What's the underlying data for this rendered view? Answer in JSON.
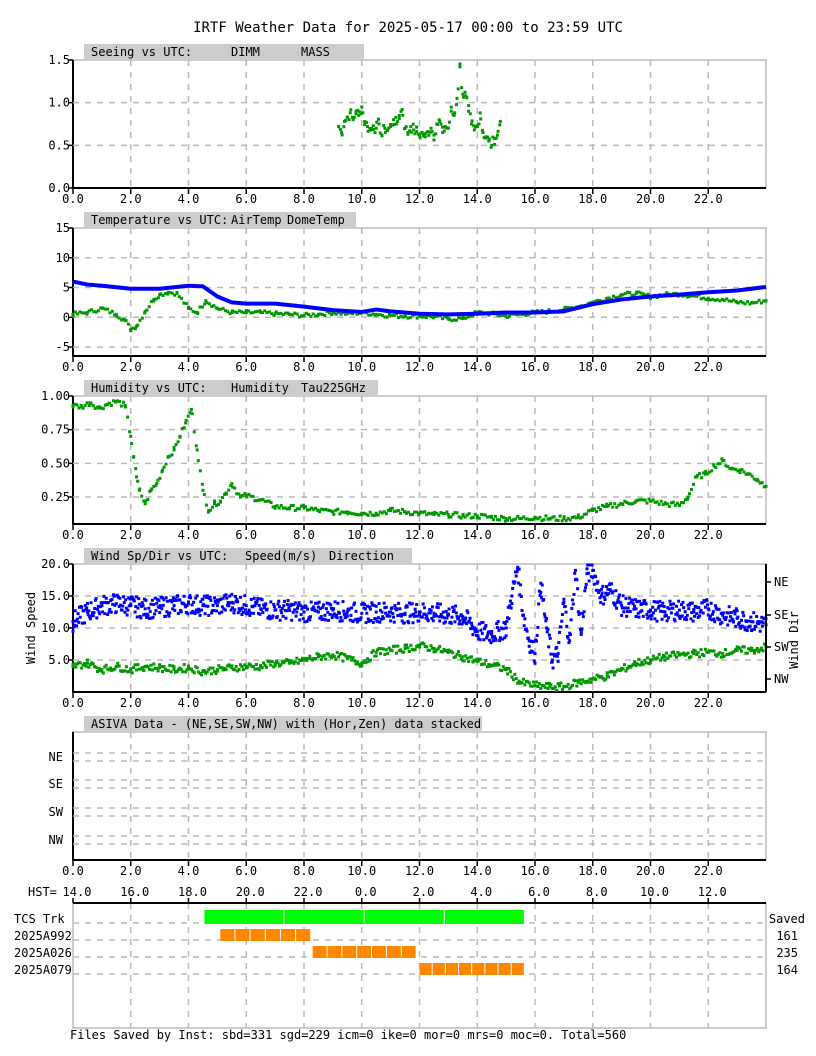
{
  "title": "IRTF Weather Data for 2025-05-17 00:00 to 23:59 UTC",
  "colors": {
    "green": "#009900",
    "blue": "#0000ff",
    "lime": "#00ff00",
    "orange": "#ff8800",
    "grid": "#bbbbbb",
    "header_bg": "#cccccc"
  },
  "x_ticks": [
    "0.0",
    "2.0",
    "4.0",
    "6.0",
    "8.0",
    "10.0",
    "12.0",
    "14.0",
    "16.0",
    "18.0",
    "20.0",
    "22.0"
  ],
  "hst_prefix": "HST=",
  "hst_ticks": [
    "14.0",
    "16.0",
    "18.0",
    "20.0",
    "22.0",
    "0.0",
    "2.0",
    "4.0",
    "6.0",
    "8.0",
    "10.0",
    "12.0"
  ],
  "chart_data": [
    {
      "type": "scatter",
      "panel": "seeing",
      "header": "Seeing vs UTC:",
      "legend": [
        {
          "label": "DIMM",
          "color": "#009900"
        },
        {
          "label": "MASS",
          "color": "#0000ff"
        }
      ],
      "ylim": [
        0,
        1.5
      ],
      "xlim": [
        0,
        24
      ],
      "y_ticks": [
        "1.5",
        "1.0",
        "0.5",
        "0.0"
      ],
      "y_tick_values": [
        1.5,
        1.0,
        0.5,
        0.0
      ],
      "series": [
        {
          "name": "DIMM",
          "color": "#009900",
          "x": [
            9.2,
            9.3,
            9.4,
            9.5,
            9.6,
            9.7,
            9.8,
            9.9,
            10.0,
            10.1,
            10.2,
            10.3,
            10.4,
            10.5,
            10.6,
            10.7,
            10.8,
            10.9,
            11.0,
            11.1,
            11.2,
            11.3,
            11.4,
            11.5,
            11.6,
            11.7,
            11.8,
            11.9,
            12.0,
            12.1,
            12.2,
            12.3,
            12.4,
            12.5,
            12.6,
            12.7,
            12.8,
            12.9,
            13.0,
            13.1,
            13.2,
            13.3,
            13.4,
            13.5,
            13.6,
            13.7,
            13.8,
            13.9,
            14.0,
            14.1,
            14.2,
            14.3,
            14.4,
            14.5,
            14.6,
            14.7,
            14.8
          ],
          "y": [
            0.72,
            0.65,
            0.78,
            0.83,
            0.88,
            0.8,
            0.9,
            0.85,
            0.95,
            0.78,
            0.72,
            0.68,
            0.73,
            0.7,
            0.75,
            0.62,
            0.7,
            0.68,
            0.72,
            0.8,
            0.75,
            0.85,
            0.92,
            0.7,
            0.65,
            0.72,
            0.68,
            0.66,
            0.62,
            0.64,
            0.6,
            0.66,
            0.7,
            0.62,
            0.75,
            0.78,
            0.65,
            0.72,
            0.7,
            0.9,
            0.85,
            1.05,
            1.42,
            1.1,
            1.08,
            0.9,
            0.75,
            0.68,
            0.72,
            0.88,
            0.65,
            0.6,
            0.55,
            0.5,
            0.58,
            0.62,
            0.78
          ]
        }
      ]
    },
    {
      "type": "line",
      "panel": "temperature",
      "header": "Temperature vs UTC:",
      "legend": [
        {
          "label": "AirTemp",
          "color": "#009900"
        },
        {
          "label": "DomeTemp",
          "color": "#0000ff"
        }
      ],
      "ylim": [
        -6.5,
        15
      ],
      "xlim": [
        0,
        24
      ],
      "y_ticks": [
        "15",
        "10",
        "5",
        "0",
        "-5"
      ],
      "y_tick_values": [
        15,
        10,
        5,
        0,
        -5
      ],
      "series": [
        {
          "name": "AirTemp",
          "color": "#009900",
          "x": [
            0,
            0.5,
            1.0,
            1.5,
            1.8,
            2.0,
            2.2,
            2.5,
            2.8,
            3.0,
            3.3,
            3.6,
            4.0,
            4.3,
            4.6,
            5.0,
            5.5,
            6.0,
            6.5,
            7.0,
            7.5,
            8.0,
            8.5,
            9.0,
            9.5,
            10.0,
            10.5,
            11.0,
            11.5,
            12.0,
            12.5,
            13.0,
            13.5,
            14.0,
            14.5,
            15.0,
            15.5,
            16.0,
            16.5,
            17.0,
            17.5,
            18.0,
            18.5,
            19.0,
            19.5,
            20.0,
            20.5,
            21.0,
            21.5,
            22.0,
            22.5,
            23.0,
            23.5,
            24.0
          ],
          "y": [
            0.5,
            0.8,
            1.5,
            0.5,
            -0.5,
            -2.0,
            -1.5,
            1.0,
            3.0,
            3.8,
            4.2,
            4.0,
            1.5,
            0.8,
            2.8,
            1.5,
            0.8,
            0.8,
            0.8,
            0.6,
            0.5,
            0.3,
            0.5,
            0.8,
            0.6,
            0.8,
            0.5,
            0.3,
            0.2,
            0.2,
            0.1,
            -0.3,
            -0.2,
            0.8,
            0.6,
            0.2,
            0.5,
            0.8,
            1.0,
            1.3,
            1.8,
            2.5,
            3.2,
            3.8,
            4.0,
            3.5,
            3.8,
            3.9,
            3.6,
            3.2,
            3.0,
            2.5,
            2.4,
            2.8
          ]
        },
        {
          "name": "DomeTemp",
          "color": "#0000ff",
          "x": [
            0,
            0.5,
            1.0,
            2.0,
            3.0,
            4.0,
            4.5,
            5.0,
            5.5,
            6.0,
            7.0,
            8.0,
            9.0,
            10.0,
            10.5,
            11.0,
            12.0,
            13.0,
            14.0,
            15.0,
            16.0,
            17.0,
            18.0,
            19.0,
            20.0,
            21.0,
            22.0,
            23.0,
            24.0
          ],
          "y": [
            6.0,
            5.5,
            5.3,
            4.8,
            4.8,
            5.3,
            5.2,
            3.5,
            2.5,
            2.3,
            2.3,
            1.8,
            1.2,
            0.9,
            1.3,
            1.0,
            0.6,
            0.5,
            0.6,
            0.8,
            0.8,
            1.0,
            2.2,
            3.0,
            3.5,
            3.8,
            4.2,
            4.5,
            5.1
          ]
        }
      ]
    },
    {
      "type": "scatter",
      "panel": "humidity",
      "header": "Humidity vs UTC:",
      "legend": [
        {
          "label": "Humidity",
          "color": "#009900"
        },
        {
          "label": "Tau225GHz",
          "color": "#0000ff"
        }
      ],
      "ylim": [
        0.05,
        1.0
      ],
      "xlim": [
        0,
        24
      ],
      "y_ticks": [
        "1.00",
        "0.75",
        "0.50",
        "0.25"
      ],
      "y_tick_values": [
        1.0,
        0.75,
        0.5,
        0.25
      ],
      "series": [
        {
          "name": "Humidity",
          "color": "#009900",
          "x": [
            0,
            0.3,
            0.6,
            0.9,
            1.2,
            1.5,
            1.8,
            2.0,
            2.1,
            2.2,
            2.3,
            2.5,
            2.7,
            2.9,
            3.1,
            3.3,
            3.5,
            3.7,
            3.9,
            4.1,
            4.3,
            4.5,
            4.7,
            4.9,
            5.1,
            5.3,
            5.5,
            5.8,
            6.0,
            6.5,
            7.0,
            7.5,
            8.0,
            8.5,
            9.0,
            9.5,
            10.0,
            10.5,
            11.0,
            11.5,
            12.0,
            12.5,
            13.0,
            13.5,
            14.0,
            14.5,
            15.0,
            15.5,
            16.0,
            16.5,
            17.0,
            17.5,
            18.0,
            18.5,
            19.0,
            19.5,
            20.0,
            20.5,
            21.0,
            21.3,
            21.6,
            21.9,
            22.2,
            22.5,
            22.8,
            23.1,
            23.4,
            23.7,
            24.0
          ],
          "y": [
            0.93,
            0.92,
            0.95,
            0.91,
            0.94,
            0.96,
            0.93,
            0.7,
            0.55,
            0.4,
            0.3,
            0.2,
            0.3,
            0.35,
            0.45,
            0.55,
            0.6,
            0.7,
            0.8,
            0.9,
            0.6,
            0.3,
            0.15,
            0.2,
            0.22,
            0.28,
            0.35,
            0.25,
            0.26,
            0.23,
            0.18,
            0.17,
            0.17,
            0.15,
            0.14,
            0.14,
            0.13,
            0.13,
            0.15,
            0.14,
            0.13,
            0.12,
            0.12,
            0.11,
            0.11,
            0.1,
            0.09,
            0.09,
            0.1,
            0.09,
            0.09,
            0.1,
            0.15,
            0.18,
            0.2,
            0.22,
            0.22,
            0.2,
            0.19,
            0.25,
            0.4,
            0.42,
            0.48,
            0.52,
            0.46,
            0.45,
            0.42,
            0.38,
            0.33
          ]
        }
      ]
    },
    {
      "type": "scatter",
      "panel": "wind",
      "header": "Wind Sp/Dir vs UTC:",
      "legend": [
        {
          "label": "Speed(m/s)",
          "color": "#009900"
        },
        {
          "label": "Direction",
          "color": "#0000ff"
        }
      ],
      "ylabel": "Wind Speed",
      "y2label": "Wind Dir",
      "ylim": [
        0,
        20
      ],
      "xlim": [
        0,
        24
      ],
      "y_ticks": [
        "20.0",
        "15.0",
        "10.0",
        "5.0"
      ],
      "y_tick_values": [
        20,
        15,
        10,
        5
      ],
      "y2_ticks": [
        "NE",
        "SE",
        "SW",
        "NW"
      ],
      "series": [
        {
          "name": "Speed(m/s)",
          "color": "#009900",
          "x": [
            0,
            0.5,
            1.0,
            1.5,
            2.0,
            2.5,
            3.0,
            3.5,
            4.0,
            4.5,
            5.0,
            5.5,
            6.0,
            6.5,
            7.0,
            7.5,
            8.0,
            8.5,
            9.0,
            9.5,
            10.0,
            10.5,
            11.0,
            11.5,
            12.0,
            12.5,
            13.0,
            13.5,
            14.0,
            14.5,
            15.0,
            15.5,
            16.0,
            16.5,
            17.0,
            17.5,
            18.0,
            18.5,
            19.0,
            19.5,
            20.0,
            20.5,
            21.0,
            21.5,
            22.0,
            22.5,
            23.0,
            23.5,
            24.0
          ],
          "y": [
            4.0,
            4.5,
            3.5,
            4.0,
            3.5,
            4.0,
            3.8,
            3.5,
            3.8,
            3.2,
            3.5,
            3.8,
            4.0,
            4.0,
            4.5,
            4.5,
            5.0,
            5.5,
            5.8,
            5.2,
            4.5,
            6.2,
            6.5,
            6.8,
            7.2,
            6.8,
            6.2,
            5.5,
            4.8,
            4.2,
            3.5,
            1.5,
            1.0,
            0.8,
            0.8,
            1.5,
            2.0,
            2.5,
            3.5,
            4.5,
            5.0,
            5.5,
            5.8,
            6.0,
            6.2,
            6.0,
            6.5,
            6.5,
            7.0
          ]
        },
        {
          "name": "Direction",
          "color": "#0000ff",
          "x": [
            0,
            0.5,
            1.0,
            1.5,
            2.0,
            2.5,
            3.0,
            3.5,
            4.0,
            4.5,
            5.0,
            5.5,
            6.0,
            6.5,
            7.0,
            7.5,
            8.0,
            8.5,
            9.0,
            9.5,
            10.0,
            10.5,
            11.0,
            11.5,
            12.0,
            12.5,
            13.0,
            13.5,
            14.0,
            14.5,
            15.0,
            15.2,
            15.4,
            15.6,
            15.8,
            16.0,
            16.2,
            16.4,
            16.6,
            16.8,
            17.0,
            17.2,
            17.4,
            17.6,
            17.8,
            18.0,
            18.3,
            18.6,
            19.0,
            19.5,
            20.0,
            20.5,
            21.0,
            21.5,
            22.0,
            22.5,
            23.0,
            23.5,
            24.0
          ],
          "y": [
            11.0,
            12.5,
            13.5,
            13.8,
            13.5,
            13.0,
            13.2,
            13.5,
            13.8,
            13.5,
            13.5,
            14.0,
            13.5,
            13.0,
            12.8,
            12.8,
            12.5,
            12.5,
            12.8,
            12.5,
            12.3,
            12.5,
            12.5,
            12.3,
            12.5,
            12.3,
            12.0,
            11.8,
            9.5,
            9.0,
            10.0,
            15.0,
            19.5,
            12.0,
            8.0,
            6.0,
            17.0,
            10.0,
            5.0,
            6.0,
            14.0,
            8.0,
            19.0,
            9.0,
            18.5,
            19.0,
            15.0,
            16.0,
            13.5,
            13.0,
            12.8,
            12.5,
            12.8,
            12.5,
            13.0,
            12.0,
            11.5,
            11.0,
            10.5
          ]
        }
      ]
    },
    {
      "type": "table",
      "panel": "asiva",
      "header": "ASIVA Data - (NE,SE,SW,NW) with (Hor,Zen) data stacked",
      "y_ticks": [
        "NE",
        "SE",
        "SW",
        "NW"
      ]
    },
    {
      "type": "bar",
      "panel": "files",
      "header_right": "Saved",
      "rows": [
        {
          "name": "TCS Trk",
          "color": "#00ff00",
          "start": 4.55,
          "end": 15.65,
          "saved": ""
        },
        {
          "name": "2025A992",
          "color": "#ff8800",
          "start": 5.1,
          "end": 8.25,
          "saved": "161"
        },
        {
          "name": "2025A026",
          "color": "#ff8800",
          "start": 8.3,
          "end": 11.9,
          "saved": "235"
        },
        {
          "name": "2025A079",
          "color": "#ff8800",
          "start": 12.0,
          "end": 15.65,
          "saved": "164"
        }
      ]
    }
  ],
  "footer": "Files Saved by Inst: sbd=331 sgd=229 icm=0 ike=0 mor=0 mrs=0 moc=0. Total=560"
}
